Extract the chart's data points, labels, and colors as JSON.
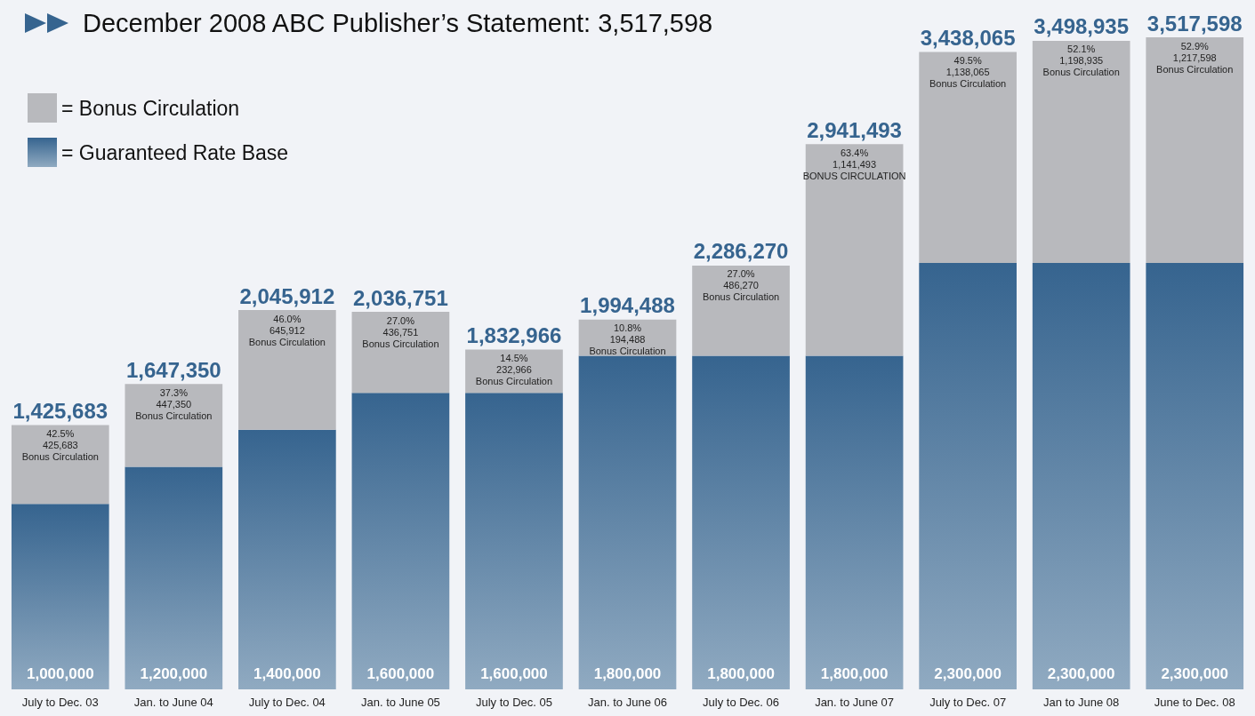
{
  "chart_data": {
    "type": "bar",
    "stacked": true,
    "title": "December 2008 ABC Publisher’s Statement: 3,517,598",
    "categories": [
      "July to Dec. 03",
      "Jan. to June 04",
      "July to Dec. 04",
      "Jan. to June 05",
      "July to Dec. 05",
      "Jan. to June 06",
      "July to Dec. 06",
      "Jan. to June 07",
      "July to Dec. 07",
      "Jan to June 08",
      "June to Dec. 08"
    ],
    "series": [
      {
        "name": "= Guaranteed Rate Base",
        "color": "#36648f",
        "values": [
          1000000,
          1200000,
          1400000,
          1600000,
          1600000,
          1800000,
          1800000,
          1800000,
          2300000,
          2300000,
          2300000
        ],
        "value_labels": [
          "1,000,000",
          "1,200,000",
          "1,400,000",
          "1,600,000",
          "1,600,000",
          "1,800,000",
          "1,800,000",
          "1,800,000",
          "2,300,000",
          "2,300,000",
          "2,300,000"
        ]
      },
      {
        "name": "= Bonus Circulation",
        "color": "#b8b9bd",
        "values": [
          425683,
          447350,
          645912,
          436751,
          232966,
          194488,
          486270,
          1141493,
          1138065,
          1198935,
          1217598
        ],
        "value_labels": [
          "42.5%\n425,683\nBonus Circulation",
          "37.3%\n447,350\nBonus Circulation",
          "46.0%\n645,912\nBonus Circulation",
          "27.0%\n436,751\nBonus Circulation",
          "14.5%\n232,966\nBonus Circulation",
          "10.8%\n194,488\nBonus Circulation",
          "27.0%\n486,270\nBonus Circulation",
          "63.4%\n1,141,493\nBONUS CIRCULATION",
          "49.5%\n1,138,065\nBonus Circulation",
          "52.1%\n1,198,935\nBonus Circulation",
          "52.9%\n1,217,598\nBonus Circulation"
        ]
      }
    ],
    "totals": [
      "1,425,683",
      "1,647,350",
      "2,045,912",
      "2,036,751",
      "1,832,966",
      "1,994,488",
      "2,286,270",
      "2,941,493",
      "3,438,065",
      "3,498,935",
      "3,517,598"
    ],
    "legend": "top left"
  }
}
